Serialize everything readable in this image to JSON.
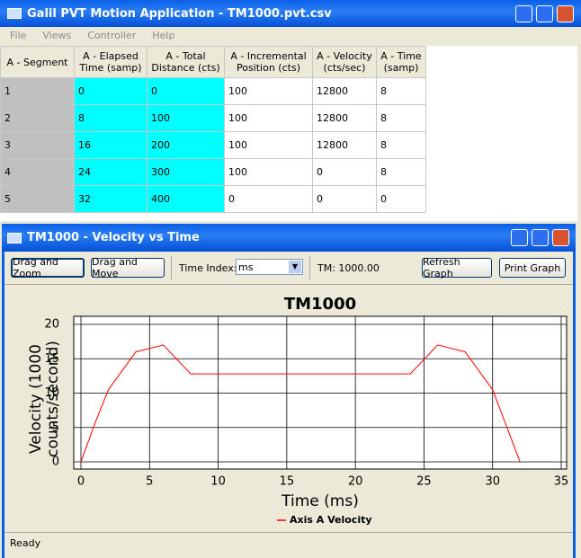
{
  "window": {
    "title": "Galil PVT Motion Application - TM1000.pvt.csv",
    "menu": [
      "File",
      "Views",
      "Controller",
      "Help"
    ]
  },
  "table": {
    "columns": [
      "A - Segment",
      "A - Elapsed Time (samp)",
      "A - Total Distance (cts)",
      "A - Incremental Position (cts)",
      "A - Velocity (cts/sec)",
      "A - Time (samp)"
    ],
    "rows": [
      [
        1,
        0,
        0,
        100,
        12800,
        8
      ],
      [
        2,
        8,
        100,
        100,
        12800,
        8
      ],
      [
        3,
        16,
        200,
        100,
        12800,
        8
      ],
      [
        4,
        24,
        300,
        100,
        0,
        8
      ],
      [
        5,
        32,
        400,
        0,
        0,
        0
      ]
    ]
  },
  "graph_window": {
    "title": "TM1000 - Velocity vs Time",
    "zoom_button": "Drag and Zoom",
    "move_button": "Drag and Move",
    "time_index_label": "Time Index:",
    "time_index_value": "ms",
    "tm_label": "TM: 1000.00",
    "refresh_button": "Refresh Graph",
    "print_button": "Print Graph"
  },
  "chart_data": {
    "type": "line",
    "title": "TM1000",
    "x_label": "Time (ms)",
    "y_label": "Velocity (1000 counts/second)",
    "x": [
      0,
      1,
      2,
      4,
      6,
      8,
      24,
      26,
      28,
      30,
      32
    ],
    "series": [
      {
        "name": "Axis A Velocity",
        "color": "#ff0000",
        "values": [
          0,
          5.5,
          10.5,
          16,
          17,
          12.8,
          12.8,
          17,
          16,
          10.5,
          0
        ]
      }
    ],
    "xlim": [
      0,
      35
    ],
    "ylim": [
      0,
      20
    ],
    "xticks": [
      0,
      5,
      10,
      15,
      20,
      25,
      30,
      35
    ],
    "yticks": [
      0,
      5,
      10,
      15,
      20
    ],
    "grid": true,
    "legend": "bottom"
  },
  "status": "Ready"
}
